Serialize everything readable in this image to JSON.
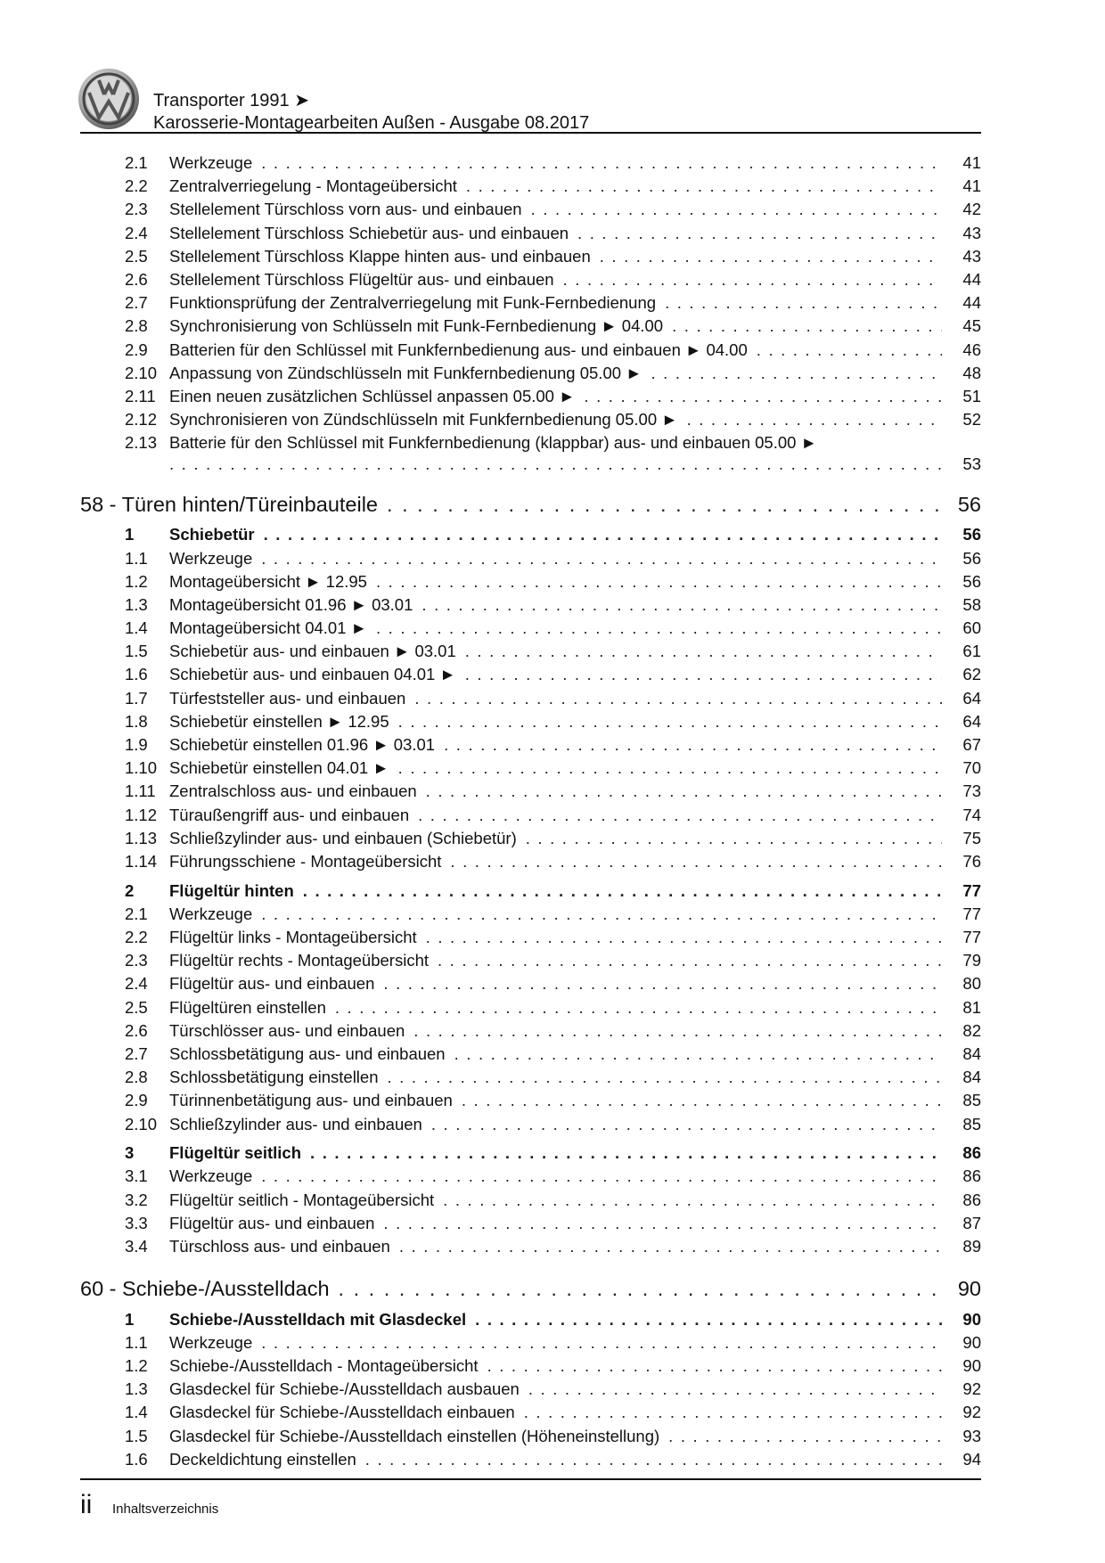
{
  "header": {
    "logo_text": "VW",
    "line1": "Transporter 1991 ➤",
    "line2": "Karosserie-Montagearbeiten Außen - Ausgabe 08.2017"
  },
  "footer": {
    "page": "ii",
    "title": "Inhaltsverzeichnis"
  },
  "toc": [
    {
      "type": "item",
      "num": "2.1",
      "title": "Werkzeuge",
      "page": "41"
    },
    {
      "type": "item",
      "num": "2.2",
      "title": "Zentralverriegelung - Montageübersicht",
      "page": "41"
    },
    {
      "type": "item",
      "num": "2.3",
      "title": "Stellelement Türschloss vorn aus- und einbauen",
      "page": "42"
    },
    {
      "type": "item",
      "num": "2.4",
      "title": "Stellelement Türschloss Schiebetür aus- und einbauen",
      "page": "43"
    },
    {
      "type": "item",
      "num": "2.5",
      "title": "Stellelement Türschloss Klappe hinten aus- und einbauen",
      "page": "43"
    },
    {
      "type": "item",
      "num": "2.6",
      "title": "Stellelement Türschloss Flügeltür aus- und einbauen",
      "page": "44"
    },
    {
      "type": "item",
      "num": "2.7",
      "title": "Funktionsprüfung der Zentralverriegelung mit Funk-Fernbedienung",
      "page": "44"
    },
    {
      "type": "item",
      "num": "2.8",
      "title": "Synchronisierung von Schlüsseln mit Funk-Fernbedienung ► 04.00",
      "page": "45"
    },
    {
      "type": "item",
      "num": "2.9",
      "title": "Batterien für den Schlüssel mit Funkfernbedienung aus- und einbauen ► 04.00",
      "page": "46"
    },
    {
      "type": "item",
      "num": "2.10",
      "title": "Anpassung von Zündschlüsseln mit Funkfernbedienung 05.00 ►",
      "page": "48"
    },
    {
      "type": "item",
      "num": "2.11",
      "title": "Einen neuen zusätzlichen Schlüssel anpassen 05.00 ►",
      "page": "51"
    },
    {
      "type": "item",
      "num": "2.12",
      "title": "Synchronisieren von Zündschlüsseln mit Funkfernbedienung 05.00 ►",
      "page": "52"
    },
    {
      "type": "wrap",
      "num": "2.13",
      "title": "Batterie für den Schlüssel mit Funkfernbedienung (klappbar) aus- und einbauen 05.00 ►",
      "page": "53"
    },
    {
      "type": "section",
      "title": "58 - Türen hinten/Türeinbauteile",
      "page": "56"
    },
    {
      "type": "sub",
      "num": "1",
      "title": "Schiebetür",
      "page": "56"
    },
    {
      "type": "item",
      "num": "1.1",
      "title": "Werkzeuge",
      "page": "56"
    },
    {
      "type": "item",
      "num": "1.2",
      "title": "Montageübersicht ► 12.95",
      "page": "56"
    },
    {
      "type": "item",
      "num": "1.3",
      "title": "Montageübersicht 01.96 ► 03.01",
      "page": "58"
    },
    {
      "type": "item",
      "num": "1.4",
      "title": "Montageübersicht 04.01 ►",
      "page": "60"
    },
    {
      "type": "item",
      "num": "1.5",
      "title": "Schiebetür aus- und einbauen ► 03.01",
      "page": "61"
    },
    {
      "type": "item",
      "num": "1.6",
      "title": "Schiebetür aus- und einbauen 04.01 ►",
      "page": "62"
    },
    {
      "type": "item",
      "num": "1.7",
      "title": "Türfeststeller aus- und einbauen",
      "page": "64"
    },
    {
      "type": "item",
      "num": "1.8",
      "title": "Schiebetür einstellen ► 12.95",
      "page": "64"
    },
    {
      "type": "item",
      "num": "1.9",
      "title": "Schiebetür einstellen 01.96 ► 03.01",
      "page": "67"
    },
    {
      "type": "item",
      "num": "1.10",
      "title": "Schiebetür einstellen 04.01 ►",
      "page": "70"
    },
    {
      "type": "item",
      "num": "1.11",
      "title": "Zentralschloss aus- und einbauen",
      "page": "73"
    },
    {
      "type": "item",
      "num": "1.12",
      "title": "Türaußengriff aus- und einbauen",
      "page": "74"
    },
    {
      "type": "item",
      "num": "1.13",
      "title": "Schließzylinder aus- und einbauen (Schiebetür)",
      "page": "75"
    },
    {
      "type": "item",
      "num": "1.14",
      "title": "Führungsschiene - Montageübersicht",
      "page": "76"
    },
    {
      "type": "sub",
      "num": "2",
      "title": "Flügeltür hinten",
      "page": "77"
    },
    {
      "type": "item",
      "num": "2.1",
      "title": "Werkzeuge",
      "page": "77"
    },
    {
      "type": "item",
      "num": "2.2",
      "title": "Flügeltür links - Montageübersicht",
      "page": "77"
    },
    {
      "type": "item",
      "num": "2.3",
      "title": "Flügeltür rechts - Montageübersicht",
      "page": "79"
    },
    {
      "type": "item",
      "num": "2.4",
      "title": "Flügeltür aus- und einbauen",
      "page": "80"
    },
    {
      "type": "item",
      "num": "2.5",
      "title": "Flügeltüren einstellen",
      "page": "81"
    },
    {
      "type": "item",
      "num": "2.6",
      "title": "Türschlösser aus- und einbauen",
      "page": "82"
    },
    {
      "type": "item",
      "num": "2.7",
      "title": "Schlossbetätigung aus- und einbauen",
      "page": "84"
    },
    {
      "type": "item",
      "num": "2.8",
      "title": "Schlossbetätigung einstellen",
      "page": "84"
    },
    {
      "type": "item",
      "num": "2.9",
      "title": "Türinnenbetätigung aus- und einbauen",
      "page": "85"
    },
    {
      "type": "item",
      "num": "2.10",
      "title": "Schließzylinder aus- und einbauen",
      "page": "85"
    },
    {
      "type": "sub",
      "num": "3",
      "title": "Flügeltür seitlich",
      "page": "86"
    },
    {
      "type": "item",
      "num": "3.1",
      "title": "Werkzeuge",
      "page": "86"
    },
    {
      "type": "item",
      "num": "3.2",
      "title": "Flügeltür seitlich - Montageübersicht",
      "page": "86"
    },
    {
      "type": "item",
      "num": "3.3",
      "title": "Flügeltür aus- und einbauen",
      "page": "87"
    },
    {
      "type": "item",
      "num": "3.4",
      "title": "Türschloss aus- und einbauen",
      "page": "89"
    },
    {
      "type": "section",
      "title": "60 - Schiebe-/Ausstelldach",
      "page": "90"
    },
    {
      "type": "sub",
      "num": "1",
      "title": "Schiebe-/Ausstelldach mit Glasdeckel",
      "page": "90"
    },
    {
      "type": "item",
      "num": "1.1",
      "title": "Werkzeuge",
      "page": "90"
    },
    {
      "type": "item",
      "num": "1.2",
      "title": "Schiebe-/Ausstelldach - Montageübersicht",
      "page": "90"
    },
    {
      "type": "item",
      "num": "1.3",
      "title": "Glasdeckel für Schiebe-/Ausstelldach ausbauen",
      "page": "92"
    },
    {
      "type": "item",
      "num": "1.4",
      "title": "Glasdeckel für Schiebe-/Ausstelldach einbauen",
      "page": "92"
    },
    {
      "type": "item",
      "num": "1.5",
      "title": "Glasdeckel für Schiebe-/Ausstelldach einstellen (Höheneinstellung)",
      "page": "93"
    },
    {
      "type": "item",
      "num": "1.6",
      "title": "Deckeldichtung einstellen",
      "page": "94"
    }
  ]
}
